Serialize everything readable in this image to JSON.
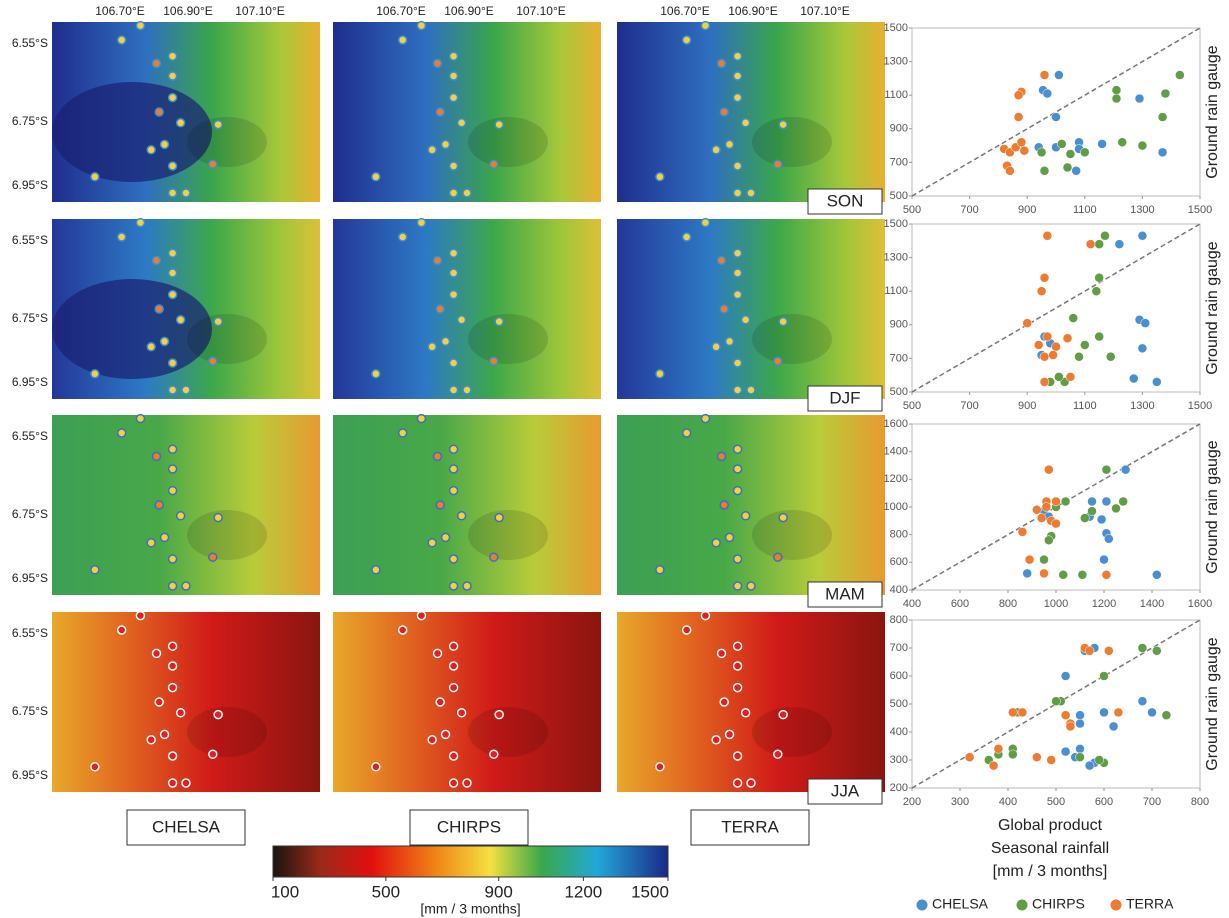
{
  "maps": {
    "x_ticks": [
      "106.70°E",
      "106.90°E",
      "107.10°E"
    ],
    "y_ticks": [
      "6.55°S",
      "6.75°S",
      "6.95°S"
    ],
    "products": [
      "CHELSA",
      "CHIRPS",
      "TERRA"
    ]
  },
  "colorbar": {
    "range": [
      100,
      1500
    ],
    "ticks": [
      100,
      500,
      900,
      1200,
      1500
    ],
    "label": "[mm / 3 months]"
  },
  "legend": [
    {
      "name": "CHELSA",
      "color": "#4a8fd0"
    },
    {
      "name": "CHIRPS",
      "color": "#5f9e45"
    },
    {
      "name": "TERRA",
      "color": "#ee7b30"
    }
  ],
  "chart_data": [
    {
      "type": "scatter",
      "season": "SON",
      "y_label": "Ground rain gauge",
      "xlim": [
        500,
        1500
      ],
      "ylim": [
        500,
        1500
      ],
      "xticks": [
        500,
        700,
        900,
        1100,
        1300,
        1500
      ],
      "yticks": [
        500,
        700,
        900,
        1100,
        1300,
        1500
      ],
      "grid": false,
      "series": [
        {
          "x": [
            955,
            1010,
            970,
            1000,
            1290,
            1370,
            940,
            1080,
            1070,
            1160,
            1000,
            1080
          ],
          "values": [
            1130,
            1220,
            1110,
            970,
            1080,
            760,
            790,
            820,
            650,
            810,
            790,
            780
          ]
        },
        {
          "x": [
            1430,
            1380,
            1370,
            1210,
            1210,
            1300,
            1230,
            960,
            950,
            1050,
            1020,
            1100,
            1040
          ],
          "values": [
            1220,
            1110,
            970,
            1130,
            1080,
            800,
            820,
            650,
            760,
            750,
            810,
            760,
            670
          ]
        },
        {
          "x": [
            960,
            880,
            870,
            870,
            820,
            840,
            860,
            880,
            830,
            840,
            890
          ],
          "values": [
            1220,
            1120,
            1100,
            970,
            780,
            760,
            790,
            820,
            680,
            650,
            770
          ]
        }
      ]
    },
    {
      "type": "scatter",
      "season": "DJF",
      "y_label": "Ground rain gauge",
      "xlim": [
        500,
        1500
      ],
      "ylim": [
        500,
        1500
      ],
      "xticks": [
        500,
        700,
        900,
        1100,
        1300,
        1500
      ],
      "yticks": [
        500,
        700,
        900,
        1100,
        1300,
        1500
      ],
      "grid": false,
      "series": [
        {
          "x": [
            1300,
            1220,
            1290,
            1310,
            1300,
            1270,
            1350,
            960,
            950,
            980,
            1140
          ],
          "values": [
            1430,
            1380,
            930,
            910,
            760,
            580,
            560,
            830,
            720,
            790,
            1100
          ]
        },
        {
          "x": [
            1170,
            1150,
            1150,
            1140,
            1150,
            1060,
            1100,
            1190,
            1080,
            1030,
            1010,
            980
          ],
          "values": [
            1430,
            1380,
            1180,
            1100,
            830,
            940,
            780,
            710,
            710,
            560,
            590,
            560
          ]
        },
        {
          "x": [
            970,
            1120,
            960,
            950,
            900,
            970,
            940,
            1000,
            960,
            1040,
            1050,
            960,
            990
          ],
          "values": [
            1430,
            1380,
            1180,
            1100,
            910,
            830,
            780,
            770,
            710,
            820,
            590,
            560,
            720
          ]
        }
      ]
    },
    {
      "type": "scatter",
      "season": "MAM",
      "y_label": "Ground rain gauge",
      "xlim": [
        400,
        1600
      ],
      "ylim": [
        400,
        1600
      ],
      "xticks": [
        400,
        600,
        800,
        1000,
        1200,
        1400,
        1600
      ],
      "yticks": [
        400,
        600,
        800,
        1000,
        1200,
        1400,
        1600
      ],
      "grid": false,
      "series": [
        {
          "x": [
            1290,
            1210,
            1150,
            1190,
            1210,
            1220,
            1200,
            1420,
            950,
            970,
            880,
            1140
          ],
          "values": [
            1270,
            1040,
            1040,
            910,
            810,
            770,
            620,
            510,
            970,
            930,
            520,
            930
          ]
        },
        {
          "x": [
            1210,
            1280,
            1250,
            1150,
            1120,
            1040,
            1000,
            980,
            970,
            950,
            1030,
            1110
          ],
          "values": [
            1270,
            1040,
            990,
            970,
            920,
            1040,
            1000,
            790,
            760,
            620,
            510,
            510
          ]
        },
        {
          "x": [
            970,
            960,
            1000,
            920,
            940,
            980,
            1000,
            860,
            890,
            950,
            1210,
            960
          ],
          "values": [
            1270,
            1040,
            1040,
            980,
            920,
            900,
            880,
            820,
            620,
            520,
            510,
            1000
          ]
        }
      ]
    },
    {
      "type": "scatter",
      "season": "JJA",
      "y_label": "Ground rain gauge",
      "x_label": [
        "Global product",
        "Seasonal rainfall",
        "[mm / 3 months]"
      ],
      "xlim": [
        200,
        800
      ],
      "ylim": [
        200,
        800
      ],
      "xticks": [
        200,
        300,
        400,
        500,
        600,
        700,
        800
      ],
      "yticks": [
        200,
        300,
        400,
        500,
        600,
        700,
        800
      ],
      "grid": false,
      "series": [
        {
          "x": [
            580,
            560,
            520,
            680,
            700,
            600,
            550,
            550,
            620,
            520,
            550,
            540,
            580,
            570
          ],
          "values": [
            700,
            690,
            600,
            510,
            470,
            470,
            460,
            430,
            420,
            330,
            340,
            310,
            290,
            280
          ]
        },
        {
          "x": [
            680,
            710,
            600,
            510,
            500,
            730,
            420,
            410,
            410,
            360,
            380,
            600,
            590,
            550
          ],
          "values": [
            700,
            690,
            600,
            510,
            510,
            460,
            470,
            340,
            320,
            300,
            320,
            290,
            300,
            310
          ]
        },
        {
          "x": [
            560,
            570,
            610,
            630,
            520,
            530,
            410,
            430,
            380,
            320,
            460,
            490,
            370,
            530
          ],
          "values": [
            700,
            690,
            690,
            470,
            460,
            430,
            470,
            470,
            340,
            310,
            310,
            300,
            280,
            420
          ]
        }
      ]
    }
  ]
}
